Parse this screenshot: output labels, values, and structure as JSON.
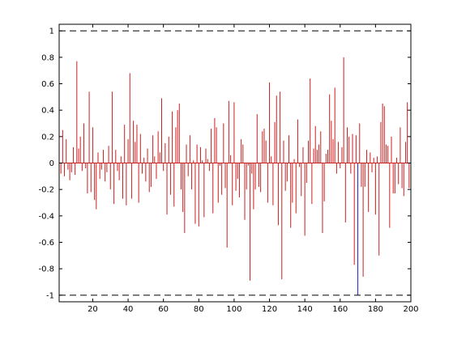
{
  "chart_data": {
    "type": "bar",
    "title": "",
    "xlabel": "",
    "ylabel": "",
    "xlim": [
      1,
      200
    ],
    "ylim": [
      -1.05,
      1.05
    ],
    "grid": false,
    "legend": "none",
    "x_ticks": [
      20,
      40,
      60,
      80,
      100,
      120,
      140,
      160,
      180,
      200
    ],
    "y_ticks": [
      -1,
      -0.8,
      -0.6,
      -0.4,
      -0.2,
      0,
      0.2,
      0.4,
      0.6,
      0.8,
      1
    ],
    "reference_lines": [
      {
        "y": 1,
        "style": "dashed",
        "color": "#000000"
      },
      {
        "y": -1,
        "style": "dashed",
        "color": "#000000"
      }
    ],
    "series": [
      {
        "color": "#cc1f1f",
        "x": [
          1,
          2,
          3,
          4,
          5,
          6,
          7,
          8,
          9,
          10,
          11,
          12,
          13,
          14,
          15,
          16,
          17,
          18,
          19,
          20,
          21,
          22,
          23,
          24,
          25,
          26,
          27,
          28,
          29,
          30,
          31,
          32,
          33,
          34,
          35,
          36,
          37,
          38,
          39,
          40,
          41,
          42,
          43,
          44,
          45,
          46,
          47,
          48,
          49,
          50,
          51,
          52,
          53,
          54,
          55,
          56,
          57,
          58,
          59,
          60,
          61,
          62,
          63,
          64,
          65,
          66,
          67,
          68,
          69,
          70,
          71,
          72,
          73,
          74,
          75,
          76,
          77,
          78,
          79,
          80,
          81,
          82,
          83,
          84,
          85,
          86,
          87,
          88,
          89,
          90,
          91,
          92,
          93,
          94,
          95,
          96,
          97,
          98,
          99,
          100,
          101,
          102,
          103,
          104,
          105,
          106,
          107,
          108,
          109,
          110,
          111,
          112,
          113,
          114,
          115,
          116,
          117,
          118,
          119,
          120,
          121,
          122,
          123,
          124,
          125,
          126,
          127,
          128,
          129,
          130,
          131,
          132,
          133,
          134,
          135,
          136,
          137,
          138,
          139,
          140,
          141,
          142,
          143,
          144,
          145,
          146,
          147,
          148,
          149,
          150,
          151,
          152,
          153,
          154,
          155,
          156,
          157,
          158,
          159,
          160,
          161,
          162,
          163,
          164,
          165,
          166,
          167,
          168,
          169,
          171,
          172,
          173,
          174,
          175,
          176,
          177,
          178,
          179,
          180,
          181,
          182,
          183,
          184,
          185,
          186,
          187,
          188,
          189,
          190,
          191,
          192,
          193,
          194,
          195,
          196,
          197,
          198,
          199,
          200
        ],
        "values": [
          0.22,
          -0.08,
          0.25,
          -0.1,
          0.18,
          -0.05,
          -0.13,
          -0.07,
          0.12,
          -0.09,
          0.77,
          0.11,
          0.2,
          -0.06,
          0.3,
          -0.04,
          -0.23,
          0.54,
          -0.22,
          0.27,
          -0.28,
          -0.35,
          0.08,
          -0.12,
          -0.05,
          0.1,
          -0.14,
          -0.07,
          0.13,
          -0.2,
          0.54,
          -0.31,
          0.1,
          -0.06,
          -0.13,
          0.05,
          -0.27,
          0.29,
          -0.32,
          0.18,
          0.68,
          -0.27,
          0.32,
          0.16,
          0.29,
          -0.3,
          0.22,
          -0.08,
          0.04,
          -0.14,
          0.11,
          -0.22,
          -0.18,
          0.21,
          0.05,
          -0.12,
          0.24,
          0.08,
          0.49,
          -0.06,
          0.15,
          -0.39,
          0.2,
          -0.24,
          0.39,
          -0.33,
          0.27,
          0.4,
          0.45,
          -0.2,
          -0.37,
          -0.53,
          0.14,
          -0.1,
          0.21,
          -0.2,
          0.02,
          -0.46,
          0.14,
          -0.48,
          0.12,
          0.02,
          -0.41,
          0.11,
          0.03,
          -0.06,
          0.26,
          -0.38,
          0.34,
          0.27,
          -0.3,
          -0.02,
          -0.24,
          0.3,
          -0.19,
          -0.64,
          0.47,
          0.06,
          -0.32,
          0.46,
          -0.21,
          -0.12,
          -0.26,
          0.18,
          0.14,
          -0.43,
          -0.2,
          -0.02,
          -0.89,
          -0.08,
          -0.35,
          -0.2,
          0.37,
          -0.18,
          -0.22,
          0.24,
          0.26,
          0.17,
          -0.3,
          0.61,
          0.05,
          -0.32,
          0.31,
          0.51,
          -0.47,
          0.54,
          -0.88,
          0.17,
          -0.21,
          -0.14,
          0.21,
          -0.49,
          -0.3,
          0.03,
          -0.38,
          0.33,
          -0.03,
          -0.25,
          0.12,
          -0.55,
          -0.15,
          0.17,
          0.64,
          -0.31,
          0.11,
          0.28,
          0.1,
          0.14,
          0.24,
          -0.53,
          -0.29,
          0.07,
          0.1,
          0.52,
          0.32,
          0.18,
          0.57,
          -0.08,
          0.16,
          -0.04,
          0.12,
          0.8,
          -0.45,
          0.27,
          0.2,
          -0.08,
          0.22,
          -0.77,
          0.21,
          0.3,
          -0.18,
          -0.86,
          -0.18,
          0.1,
          -0.37,
          0.08,
          -0.07,
          0.04,
          -0.39,
          0.05,
          -0.7,
          0.31,
          0.45,
          0.43,
          0.14,
          0.13,
          -0.49,
          0.2,
          -0.23,
          -0.23,
          0.04,
          -0.16,
          0.27,
          -0.19,
          -0.25,
          0.16,
          0.46,
          -0.19,
          0.25
        ]
      },
      {
        "color": "#1f1fcc",
        "x": [
          170
        ],
        "values": [
          -1
        ]
      }
    ]
  }
}
